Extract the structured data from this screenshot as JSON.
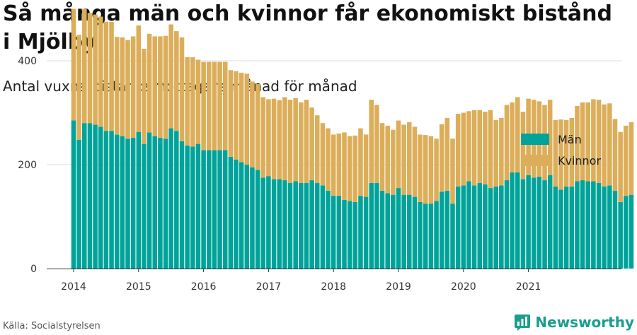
{
  "header": {
    "title": "Så många män och kvinnor får ekonomiskt bistånd i Mjölby",
    "subtitle": "Antal vuxna biståndsmottagare månad för månad"
  },
  "footer": {
    "source": "Källa: Socialstyrelsen",
    "brand": "Newsworthy",
    "brand_icon": "newsworthy-logo-icon"
  },
  "colors": {
    "men": "#00a39a",
    "women": "#dcae5a",
    "grid": "#dddddd",
    "axis": "#333333",
    "brand": "#1a9e8f"
  },
  "chart_data": {
    "type": "bar",
    "stacked": true,
    "ylim": [
      0,
      500
    ],
    "yticks": [
      0,
      200,
      400
    ],
    "xticks": [
      "2014",
      "2015",
      "2016",
      "2017",
      "2018",
      "2019",
      "2020",
      "2021"
    ],
    "grid": true,
    "legend_position": "top-right",
    "start": "2014-01",
    "series": [
      {
        "name": "Män",
        "values": [
          285,
          248,
          280,
          280,
          277,
          273,
          265,
          265,
          258,
          255,
          250,
          252,
          263,
          240,
          262,
          255,
          252,
          250,
          270,
          265,
          245,
          237,
          235,
          240,
          228,
          228,
          228,
          228,
          228,
          215,
          210,
          205,
          200,
          195,
          190,
          175,
          178,
          172,
          172,
          170,
          165,
          168,
          165,
          165,
          170,
          165,
          160,
          150,
          140,
          140,
          132,
          130,
          128,
          140,
          138,
          165,
          165,
          150,
          145,
          142,
          155,
          142,
          142,
          138,
          128,
          125,
          125,
          130,
          148,
          150,
          125,
          158,
          160,
          168,
          160,
          165,
          162,
          155,
          158,
          160,
          170,
          185,
          185,
          172,
          180,
          175,
          177,
          170,
          180,
          158,
          152,
          158,
          158,
          168,
          170,
          168,
          168,
          165,
          158,
          160,
          150,
          128,
          140,
          142
        ]
      },
      {
        "name": "Kvinnor",
        "values": [
          215,
          202,
          220,
          212,
          212,
          212,
          210,
          210,
          188,
          190,
          190,
          195,
          205,
          183,
          190,
          192,
          195,
          198,
          200,
          192,
          200,
          170,
          172,
          162,
          170,
          170,
          170,
          170,
          170,
          167,
          170,
          172,
          175,
          165,
          165,
          155,
          148,
          155,
          152,
          160,
          160,
          160,
          155,
          160,
          140,
          130,
          120,
          120,
          118,
          120,
          130,
          125,
          128,
          130,
          120,
          160,
          150,
          130,
          130,
          125,
          130,
          135,
          140,
          135,
          130,
          132,
          130,
          120,
          130,
          140,
          125,
          140,
          140,
          135,
          145,
          140,
          140,
          150,
          128,
          130,
          145,
          135,
          145,
          130,
          147,
          150,
          145,
          145,
          145,
          128,
          135,
          128,
          132,
          145,
          150,
          152,
          158,
          160,
          158,
          158,
          138,
          135,
          135,
          140
        ]
      }
    ]
  }
}
